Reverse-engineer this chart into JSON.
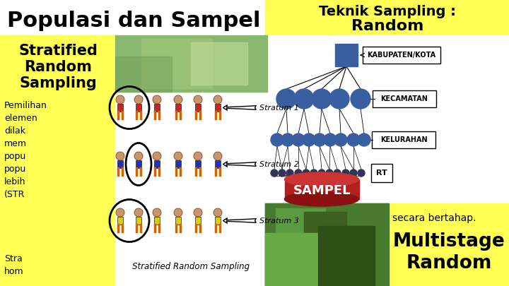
{
  "title_left": "Populasi dan Sampel",
  "title_right_1": "Teknik Sampling :",
  "title_right_2": "Random",
  "subtitle_1": "Stratified",
  "subtitle_2": "Random",
  "subtitle_3": "Sampling",
  "body_lines": [
    "Pemilihan",
    "elemen",
    "dilak",
    "mem",
    "popu",
    "popu",
    "lebih",
    "(STR"
  ],
  "bottom_left_lines": [
    "Stra",
    "hom"
  ],
  "strata_labels": [
    "Stratum 1",
    "Stratum 2",
    "Stratum 3"
  ],
  "hier_labels": [
    "KABUPATEN/KOTA",
    "KECAMATAN",
    "KELURAHAN",
    "RT"
  ],
  "sampel_text": "SAMPEL",
  "bottom_text": "secara bertahap.",
  "multistage_1": "Multistage",
  "multistage_2": "Random",
  "strat_caption": "Stratified Random Sampling",
  "bg_white": "#ffffff",
  "bg_yellow": "#ffff55",
  "node_blue": "#3a5fa0",
  "sampel_red": "#b22020",
  "sampel_red2": "#8b1010",
  "shirt_red": "#cc2222",
  "shirt_blue": "#2233bb",
  "shirt_yellow": "#ddcc00",
  "skin": "#c8956c",
  "leg_color": "#cc6600",
  "green_bg": "#3d6b28"
}
